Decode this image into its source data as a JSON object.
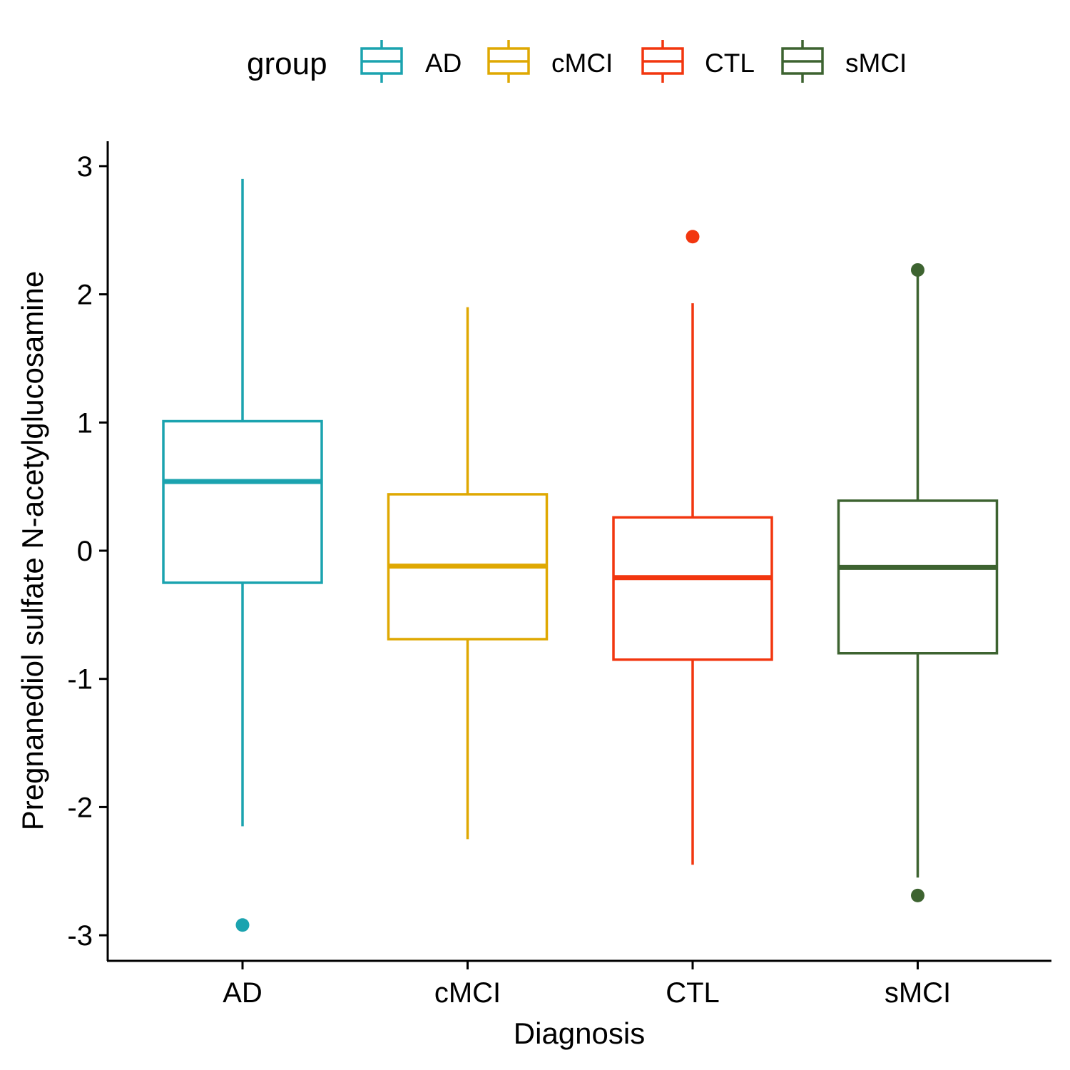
{
  "chart_data": {
    "type": "box",
    "title": "",
    "xlabel": "Diagnosis",
    "ylabel": "Pregnanediol sulfate N-acetylglucosamine",
    "ylim": [
      -3.2,
      3.2
    ],
    "y_ticks": [
      "3",
      "2",
      "1",
      "0",
      "-1",
      "-2",
      "-3"
    ],
    "y_tick_values": [
      3,
      2,
      1,
      0,
      -1,
      -2,
      -3
    ],
    "categories": [
      "AD",
      "cMCI",
      "CTL",
      "sMCI"
    ],
    "legend": {
      "title": "group",
      "position": "top",
      "entries": [
        "AD",
        "cMCI",
        "CTL",
        "sMCI"
      ]
    },
    "colors": {
      "AD": "#1ba3af",
      "cMCI": "#dfa802",
      "CTL": "#f2360f",
      "sMCI": "#3d6330"
    },
    "grid": false,
    "boxes": [
      {
        "group": "AD",
        "whisker_low": -2.15,
        "q1": -0.25,
        "median": 0.54,
        "q3": 1.01,
        "whisker_high": 2.9,
        "outliers": [
          -2.92
        ]
      },
      {
        "group": "cMCI",
        "whisker_low": -2.25,
        "q1": -0.69,
        "median": -0.12,
        "q3": 0.44,
        "whisker_high": 1.9,
        "outliers": []
      },
      {
        "group": "CTL",
        "whisker_low": -2.45,
        "q1": -0.85,
        "median": -0.21,
        "q3": 0.26,
        "whisker_high": 1.93,
        "outliers": [
          2.45
        ]
      },
      {
        "group": "sMCI",
        "whisker_low": -2.55,
        "q1": -0.8,
        "median": -0.13,
        "q3": 0.39,
        "whisker_high": 2.19,
        "outliers": [
          2.19,
          -2.69
        ]
      }
    ]
  }
}
